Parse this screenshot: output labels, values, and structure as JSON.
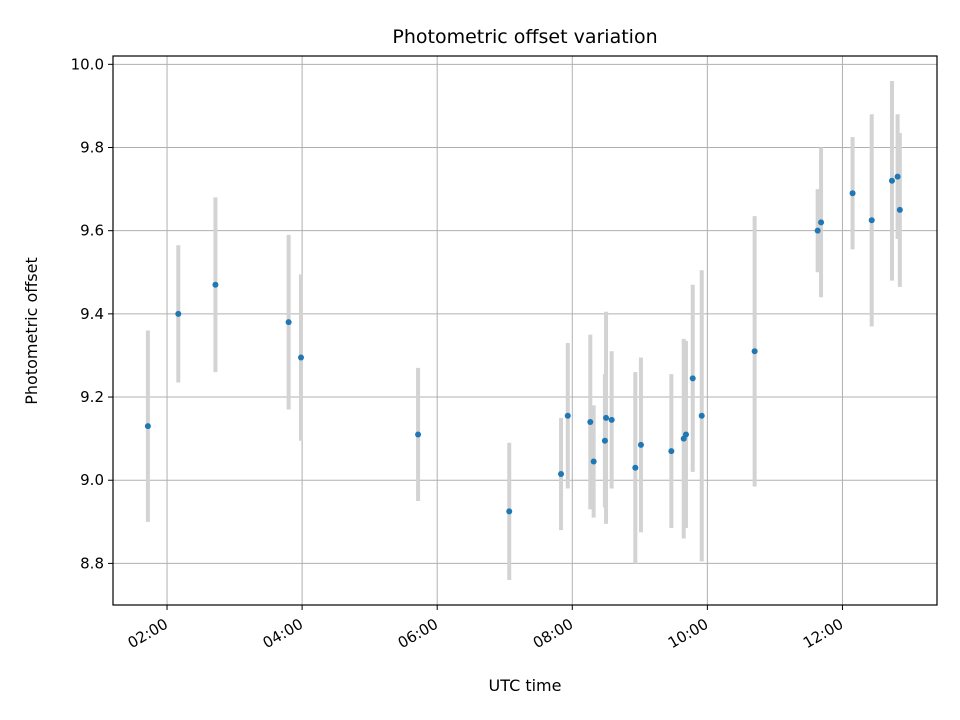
{
  "chart_data": {
    "type": "scatter",
    "title": "Photometric offset variation",
    "xlabel": "UTC time",
    "ylabel": "Photometric offset",
    "x_axis": "time",
    "xlim": [
      "01:12",
      "13:24"
    ],
    "ylim": [
      8.7,
      10.02
    ],
    "x_ticks": [
      "02:00",
      "04:00",
      "06:00",
      "08:00",
      "10:00",
      "12:00"
    ],
    "y_ticks": [
      8.8,
      9.0,
      9.2,
      9.4,
      9.6,
      9.8,
      10.0
    ],
    "y_tick_labels": [
      "8.8",
      "9.0",
      "9.2",
      "9.4",
      "9.6",
      "9.8",
      "10.0"
    ],
    "grid": true,
    "point_color": "#1f77b4",
    "errorbar_color": "#d3d3d3",
    "points": [
      {
        "x": "01:43",
        "y": 9.13,
        "err": 0.23
      },
      {
        "x": "02:10",
        "y": 9.4,
        "err": 0.165
      },
      {
        "x": "02:43",
        "y": 9.47,
        "err": 0.21
      },
      {
        "x": "03:48",
        "y": 9.38,
        "err": 0.21
      },
      {
        "x": "03:59",
        "y": 9.295,
        "err": 0.2
      },
      {
        "x": "05:43",
        "y": 9.11,
        "err": 0.16
      },
      {
        "x": "07:04",
        "y": 8.925,
        "err": 0.165
      },
      {
        "x": "07:50",
        "y": 9.015,
        "err": 0.135
      },
      {
        "x": "07:56",
        "y": 9.155,
        "err": 0.175
      },
      {
        "x": "08:16",
        "y": 9.14,
        "err": 0.21
      },
      {
        "x": "08:19",
        "y": 9.045,
        "err": 0.135
      },
      {
        "x": "08:29",
        "y": 9.095,
        "err": 0.16
      },
      {
        "x": "08:30",
        "y": 9.15,
        "err": 0.255
      },
      {
        "x": "08:35",
        "y": 9.145,
        "err": 0.165
      },
      {
        "x": "08:56",
        "y": 9.03,
        "err": 0.23
      },
      {
        "x": "09:01",
        "y": 9.085,
        "err": 0.21
      },
      {
        "x": "09:28",
        "y": 9.07,
        "err": 0.185
      },
      {
        "x": "09:39",
        "y": 9.1,
        "err": 0.24
      },
      {
        "x": "09:41",
        "y": 9.11,
        "err": 0.225
      },
      {
        "x": "09:47",
        "y": 9.245,
        "err": 0.225
      },
      {
        "x": "09:55",
        "y": 9.155,
        "err": 0.35
      },
      {
        "x": "10:42",
        "y": 9.31,
        "err": 0.325
      },
      {
        "x": "11:38",
        "y": 9.6,
        "err": 0.1
      },
      {
        "x": "11:41",
        "y": 9.62,
        "err": 0.18
      },
      {
        "x": "12:09",
        "y": 9.69,
        "err": 0.135
      },
      {
        "x": "12:26",
        "y": 9.625,
        "err": 0.255
      },
      {
        "x": "12:44",
        "y": 9.72,
        "err": 0.24
      },
      {
        "x": "12:49",
        "y": 9.73,
        "err": 0.15
      },
      {
        "x": "12:51",
        "y": 9.65,
        "err": 0.185
      }
    ]
  }
}
